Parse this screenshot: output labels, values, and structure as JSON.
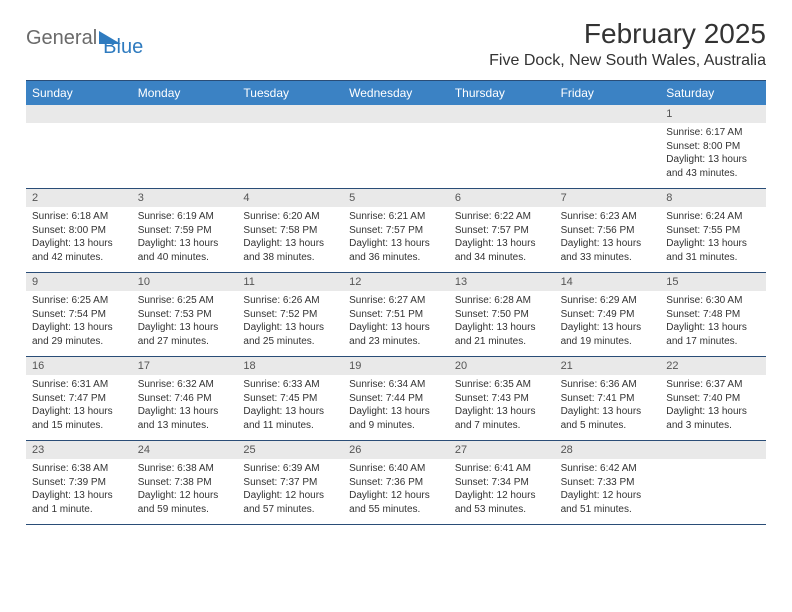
{
  "logo": {
    "text1": "General",
    "text2": "Blue",
    "triangle_color": "#2f7bbf"
  },
  "title": "February 2025",
  "location": "Five Dock, New South Wales, Australia",
  "title_fontsize": 28,
  "location_fontsize": 16,
  "header_bg": "#3b82c4",
  "header_text_color": "#ffffff",
  "daynum_bg": "#e9e9e9",
  "daynum_color": "#555555",
  "border_color": "#2a4d77",
  "body_font_size": 10,
  "dow": [
    "Sunday",
    "Monday",
    "Tuesday",
    "Wednesday",
    "Thursday",
    "Friday",
    "Saturday"
  ],
  "weeks": [
    {
      "numbers": [
        "",
        "",
        "",
        "",
        "",
        "",
        "1"
      ],
      "details": [
        "",
        "",
        "",
        "",
        "",
        "",
        "Sunrise: 6:17 AM\nSunset: 8:00 PM\nDaylight: 13 hours and 43 minutes."
      ]
    },
    {
      "numbers": [
        "2",
        "3",
        "4",
        "5",
        "6",
        "7",
        "8"
      ],
      "details": [
        "Sunrise: 6:18 AM\nSunset: 8:00 PM\nDaylight: 13 hours and 42 minutes.",
        "Sunrise: 6:19 AM\nSunset: 7:59 PM\nDaylight: 13 hours and 40 minutes.",
        "Sunrise: 6:20 AM\nSunset: 7:58 PM\nDaylight: 13 hours and 38 minutes.",
        "Sunrise: 6:21 AM\nSunset: 7:57 PM\nDaylight: 13 hours and 36 minutes.",
        "Sunrise: 6:22 AM\nSunset: 7:57 PM\nDaylight: 13 hours and 34 minutes.",
        "Sunrise: 6:23 AM\nSunset: 7:56 PM\nDaylight: 13 hours and 33 minutes.",
        "Sunrise: 6:24 AM\nSunset: 7:55 PM\nDaylight: 13 hours and 31 minutes."
      ]
    },
    {
      "numbers": [
        "9",
        "10",
        "11",
        "12",
        "13",
        "14",
        "15"
      ],
      "details": [
        "Sunrise: 6:25 AM\nSunset: 7:54 PM\nDaylight: 13 hours and 29 minutes.",
        "Sunrise: 6:25 AM\nSunset: 7:53 PM\nDaylight: 13 hours and 27 minutes.",
        "Sunrise: 6:26 AM\nSunset: 7:52 PM\nDaylight: 13 hours and 25 minutes.",
        "Sunrise: 6:27 AM\nSunset: 7:51 PM\nDaylight: 13 hours and 23 minutes.",
        "Sunrise: 6:28 AM\nSunset: 7:50 PM\nDaylight: 13 hours and 21 minutes.",
        "Sunrise: 6:29 AM\nSunset: 7:49 PM\nDaylight: 13 hours and 19 minutes.",
        "Sunrise: 6:30 AM\nSunset: 7:48 PM\nDaylight: 13 hours and 17 minutes."
      ]
    },
    {
      "numbers": [
        "16",
        "17",
        "18",
        "19",
        "20",
        "21",
        "22"
      ],
      "details": [
        "Sunrise: 6:31 AM\nSunset: 7:47 PM\nDaylight: 13 hours and 15 minutes.",
        "Sunrise: 6:32 AM\nSunset: 7:46 PM\nDaylight: 13 hours and 13 minutes.",
        "Sunrise: 6:33 AM\nSunset: 7:45 PM\nDaylight: 13 hours and 11 minutes.",
        "Sunrise: 6:34 AM\nSunset: 7:44 PM\nDaylight: 13 hours and 9 minutes.",
        "Sunrise: 6:35 AM\nSunset: 7:43 PM\nDaylight: 13 hours and 7 minutes.",
        "Sunrise: 6:36 AM\nSunset: 7:41 PM\nDaylight: 13 hours and 5 minutes.",
        "Sunrise: 6:37 AM\nSunset: 7:40 PM\nDaylight: 13 hours and 3 minutes."
      ]
    },
    {
      "numbers": [
        "23",
        "24",
        "25",
        "26",
        "27",
        "28",
        ""
      ],
      "details": [
        "Sunrise: 6:38 AM\nSunset: 7:39 PM\nDaylight: 13 hours and 1 minute.",
        "Sunrise: 6:38 AM\nSunset: 7:38 PM\nDaylight: 12 hours and 59 minutes.",
        "Sunrise: 6:39 AM\nSunset: 7:37 PM\nDaylight: 12 hours and 57 minutes.",
        "Sunrise: 6:40 AM\nSunset: 7:36 PM\nDaylight: 12 hours and 55 minutes.",
        "Sunrise: 6:41 AM\nSunset: 7:34 PM\nDaylight: 12 hours and 53 minutes.",
        "Sunrise: 6:42 AM\nSunset: 7:33 PM\nDaylight: 12 hours and 51 minutes.",
        ""
      ]
    }
  ]
}
